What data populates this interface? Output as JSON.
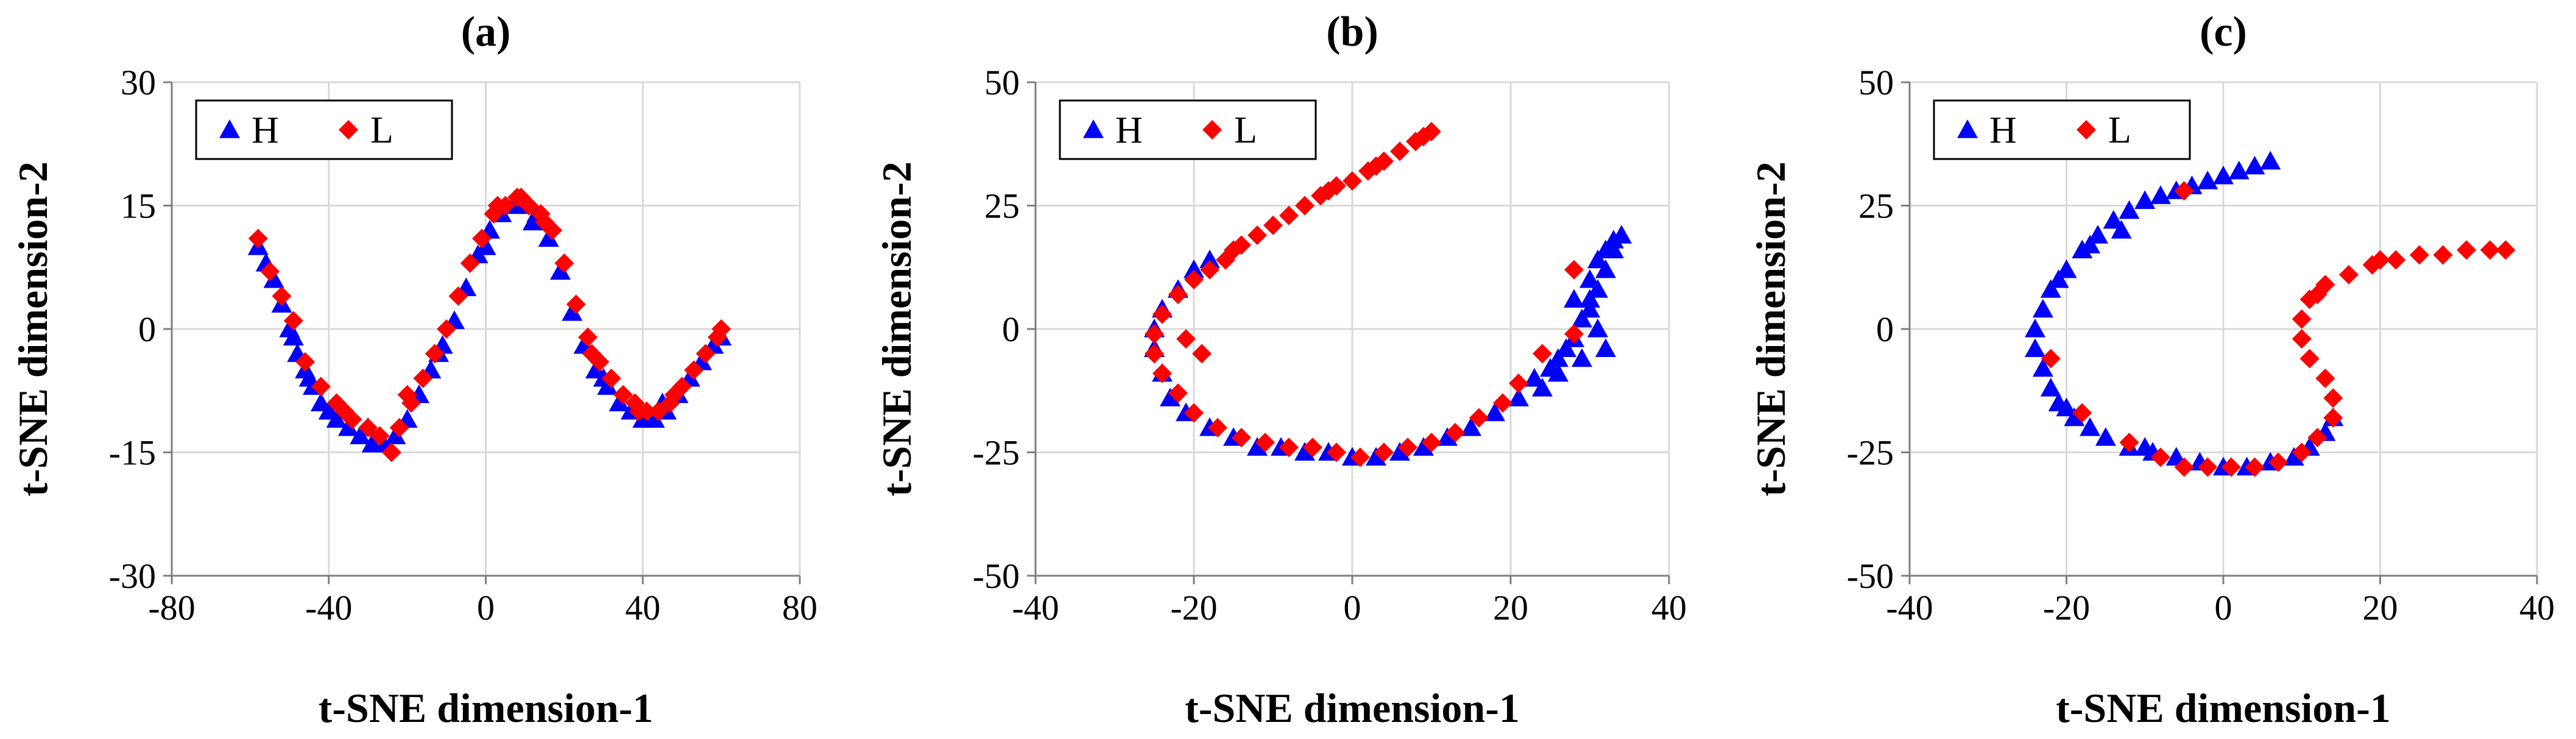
{
  "colors": {
    "H": "#0000ff",
    "L": "#ff0000"
  },
  "chart_data": [
    {
      "type": "scatter",
      "title": "(a)",
      "xlabel": "t-SNE dimension-1",
      "ylabel": "t-SNE dimension-2",
      "xlim": [
        -80,
        80
      ],
      "ylim": [
        -30,
        30
      ],
      "xticks": [
        -80,
        -40,
        0,
        40,
        80
      ],
      "yticks": [
        -30,
        -15,
        0,
        15,
        30
      ],
      "grid": true,
      "legend": {
        "position": "top-left",
        "entries": [
          "H",
          "L"
        ]
      },
      "series": [
        {
          "name": "H",
          "marker": "triangle",
          "points": [
            [
              -58,
              10
            ],
            [
              -56,
              8
            ],
            [
              -54,
              6
            ],
            [
              -52,
              3
            ],
            [
              -50,
              0
            ],
            [
              -48,
              -3
            ],
            [
              -46,
              -5
            ],
            [
              -44,
              -7
            ],
            [
              -42,
              -9
            ],
            [
              -40,
              -10
            ],
            [
              -38,
              -11
            ],
            [
              -35,
              -12
            ],
            [
              -32,
              -13
            ],
            [
              -29,
              -14
            ],
            [
              -26,
              -14
            ],
            [
              -23,
              -13
            ],
            [
              -20,
              -11
            ],
            [
              -17,
              -8
            ],
            [
              -14,
              -5
            ],
            [
              -11,
              -2
            ],
            [
              -8,
              1
            ],
            [
              -5,
              5
            ],
            [
              -2,
              9
            ],
            [
              1,
              12
            ],
            [
              4,
              14
            ],
            [
              7,
              15
            ],
            [
              10,
              15
            ],
            [
              13,
              14
            ],
            [
              16,
              11
            ],
            [
              19,
              7
            ],
            [
              22,
              2
            ],
            [
              25,
              -2
            ],
            [
              28,
              -5
            ],
            [
              31,
              -7
            ],
            [
              34,
              -9
            ],
            [
              37,
              -10
            ],
            [
              40,
              -11
            ],
            [
              43,
              -11
            ],
            [
              46,
              -10
            ],
            [
              49,
              -8
            ],
            [
              52,
              -6
            ],
            [
              55,
              -4
            ],
            [
              58,
              -2
            ],
            [
              60,
              -1
            ],
            [
              -49,
              -1
            ],
            [
              -45,
              -6
            ],
            [
              -30,
              -12
            ],
            [
              -12,
              -3
            ],
            [
              0,
              10
            ],
            [
              12,
              13
            ],
            [
              30,
              -6
            ],
            [
              45,
              -9
            ]
          ]
        },
        {
          "name": "L",
          "marker": "diamond",
          "points": [
            [
              -58,
              11
            ],
            [
              -55,
              7
            ],
            [
              -52,
              4
            ],
            [
              -49,
              1
            ],
            [
              -46,
              -4
            ],
            [
              -42,
              -7
            ],
            [
              -38,
              -9
            ],
            [
              -34,
              -11
            ],
            [
              -30,
              -12
            ],
            [
              -27,
              -13
            ],
            [
              -24,
              -15
            ],
            [
              -22,
              -12
            ],
            [
              -19,
              -9
            ],
            [
              -16,
              -6
            ],
            [
              -13,
              -3
            ],
            [
              -10,
              0
            ],
            [
              -7,
              4
            ],
            [
              -4,
              8
            ],
            [
              -1,
              11
            ],
            [
              2,
              14
            ],
            [
              5,
              15
            ],
            [
              8,
              16
            ],
            [
              11,
              15
            ],
            [
              14,
              14
            ],
            [
              17,
              12
            ],
            [
              20,
              8
            ],
            [
              23,
              3
            ],
            [
              26,
              -1
            ],
            [
              29,
              -4
            ],
            [
              32,
              -6
            ],
            [
              35,
              -8
            ],
            [
              38,
              -9
            ],
            [
              41,
              -10
            ],
            [
              44,
              -10
            ],
            [
              47,
              -9
            ],
            [
              50,
              -7
            ],
            [
              53,
              -5
            ],
            [
              56,
              -3
            ],
            [
              59,
              -1
            ],
            [
              60,
              0
            ],
            [
              -36,
              -10
            ],
            [
              -20,
              -8
            ],
            [
              3,
              15
            ],
            [
              9,
              16
            ],
            [
              15,
              13
            ],
            [
              27,
              -3
            ],
            [
              39,
              -10
            ],
            [
              48,
              -8
            ]
          ]
        }
      ]
    },
    {
      "type": "scatter",
      "title": "(b)",
      "xlabel": "t-SNE dimension-1",
      "ylabel": "t-SNE dimension-2",
      "xlim": [
        -40,
        40
      ],
      "ylim": [
        -50,
        50
      ],
      "xticks": [
        -40,
        -20,
        0,
        20,
        40
      ],
      "yticks": [
        -50,
        -25,
        0,
        25,
        50
      ],
      "grid": true,
      "legend": {
        "position": "top-left",
        "entries": [
          "H",
          "L"
        ]
      },
      "series": [
        {
          "name": "H",
          "marker": "triangle",
          "points": [
            [
              -24,
              4
            ],
            [
              -25,
              0
            ],
            [
              -25,
              -4
            ],
            [
              -24,
              -9
            ],
            [
              -23,
              -14
            ],
            [
              -21,
              -17
            ],
            [
              -18,
              -20
            ],
            [
              -15,
              -22
            ],
            [
              -12,
              -24
            ],
            [
              -9,
              -24
            ],
            [
              -6,
              -25
            ],
            [
              -3,
              -25
            ],
            [
              0,
              -26
            ],
            [
              3,
              -26
            ],
            [
              6,
              -25
            ],
            [
              9,
              -24
            ],
            [
              12,
              -22
            ],
            [
              15,
              -20
            ],
            [
              18,
              -17
            ],
            [
              21,
              -14
            ],
            [
              23,
              -10
            ],
            [
              25,
              -8
            ],
            [
              26,
              -6
            ],
            [
              27,
              -4
            ],
            [
              28,
              -2
            ],
            [
              29,
              2
            ],
            [
              30,
              6
            ],
            [
              30,
              10
            ],
            [
              31,
              14
            ],
            [
              32,
              16
            ],
            [
              33,
              18
            ],
            [
              34,
              19
            ],
            [
              33,
              16
            ],
            [
              32,
              12
            ],
            [
              31,
              8
            ],
            [
              30,
              4
            ],
            [
              31,
              0
            ],
            [
              32,
              -4
            ],
            [
              28,
              6
            ],
            [
              29,
              -6
            ],
            [
              -20,
              12
            ],
            [
              -22,
              8
            ],
            [
              -18,
              14
            ],
            [
              26,
              -9
            ],
            [
              24,
              -12
            ]
          ]
        },
        {
          "name": "L",
          "marker": "diamond",
          "points": [
            [
              10,
              40
            ],
            [
              8,
              38
            ],
            [
              6,
              36
            ],
            [
              4,
              34
            ],
            [
              2,
              32
            ],
            [
              0,
              30
            ],
            [
              -2,
              29
            ],
            [
              -4,
              27
            ],
            [
              -6,
              25
            ],
            [
              -8,
              23
            ],
            [
              -10,
              21
            ],
            [
              -12,
              19
            ],
            [
              -14,
              17
            ],
            [
              -16,
              14
            ],
            [
              -18,
              12
            ],
            [
              -20,
              10
            ],
            [
              -22,
              7
            ],
            [
              -24,
              3
            ],
            [
              -25,
              -1
            ],
            [
              -25,
              -5
            ],
            [
              -24,
              -9
            ],
            [
              -22,
              -13
            ],
            [
              -20,
              -17
            ],
            [
              -17,
              -20
            ],
            [
              -14,
              -22
            ],
            [
              -11,
              -23
            ],
            [
              -8,
              -24
            ],
            [
              -5,
              -24
            ],
            [
              -2,
              -25
            ],
            [
              1,
              -26
            ],
            [
              4,
              -25
            ],
            [
              7,
              -24
            ],
            [
              10,
              -23
            ],
            [
              13,
              -21
            ],
            [
              16,
              -18
            ],
            [
              19,
              -15
            ],
            [
              21,
              -11
            ],
            [
              24,
              -5
            ],
            [
              28,
              -1
            ],
            [
              28,
              12
            ],
            [
              -21,
              -2
            ],
            [
              -19,
              -5
            ],
            [
              -15,
              16
            ],
            [
              -3,
              28
            ],
            [
              3,
              33
            ],
            [
              9,
              39
            ]
          ]
        }
      ]
    },
    {
      "type": "scatter",
      "title": "(c)",
      "xlabel": "t-SNE dimension-1",
      "ylabel": "t-SNE dimension-2",
      "xlim": [
        -40,
        40
      ],
      "ylim": [
        -50,
        50
      ],
      "xticks": [
        -40,
        -20,
        0,
        20,
        40
      ],
      "yticks": [
        -50,
        -25,
        0,
        25,
        50
      ],
      "grid": true,
      "legend": {
        "position": "top-left",
        "entries": [
          "H",
          "L"
        ]
      },
      "series": [
        {
          "name": "H",
          "marker": "triangle",
          "points": [
            [
              6,
              34
            ],
            [
              4,
              33
            ],
            [
              2,
              32
            ],
            [
              0,
              31
            ],
            [
              -2,
              30
            ],
            [
              -4,
              29
            ],
            [
              -6,
              28
            ],
            [
              -8,
              27
            ],
            [
              -10,
              26
            ],
            [
              -12,
              24
            ],
            [
              -14,
              22
            ],
            [
              -16,
              19
            ],
            [
              -18,
              16
            ],
            [
              -20,
              12
            ],
            [
              -22,
              8
            ],
            [
              -23,
              4
            ],
            [
              -24,
              0
            ],
            [
              -24,
              -4
            ],
            [
              -23,
              -8
            ],
            [
              -22,
              -12
            ],
            [
              -21,
              -15
            ],
            [
              -19,
              -18
            ],
            [
              -17,
              -20
            ],
            [
              -15,
              -22
            ],
            [
              -12,
              -24
            ],
            [
              -9,
              -25
            ],
            [
              -6,
              -26
            ],
            [
              -3,
              -27
            ],
            [
              0,
              -28
            ],
            [
              3,
              -28
            ],
            [
              6,
              -27
            ],
            [
              9,
              -26
            ],
            [
              11,
              -24
            ],
            [
              13,
              -21
            ],
            [
              14,
              -18
            ],
            [
              -13,
              20
            ],
            [
              -17,
              17
            ],
            [
              -21,
              10
            ],
            [
              -20,
              -16
            ],
            [
              -10,
              -24
            ]
          ]
        },
        {
          "name": "L",
          "marker": "diamond",
          "points": [
            [
              36,
              16
            ],
            [
              34,
              16
            ],
            [
              31,
              16
            ],
            [
              28,
              15
            ],
            [
              25,
              15
            ],
            [
              22,
              14
            ],
            [
              19,
              13
            ],
            [
              16,
              11
            ],
            [
              13,
              9
            ],
            [
              11,
              6
            ],
            [
              10,
              2
            ],
            [
              10,
              -2
            ],
            [
              11,
              -6
            ],
            [
              13,
              -10
            ],
            [
              14,
              -14
            ],
            [
              14,
              -18
            ],
            [
              12,
              -22
            ],
            [
              10,
              -25
            ],
            [
              7,
              -27
            ],
            [
              4,
              -28
            ],
            [
              1,
              -28
            ],
            [
              -2,
              -28
            ],
            [
              -5,
              -28
            ],
            [
              -8,
              -26
            ],
            [
              -12,
              -23
            ],
            [
              -18,
              -17
            ],
            [
              -22,
              -6
            ],
            [
              -5,
              28
            ],
            [
              20,
              14
            ],
            [
              12,
              7
            ]
          ]
        }
      ]
    }
  ]
}
